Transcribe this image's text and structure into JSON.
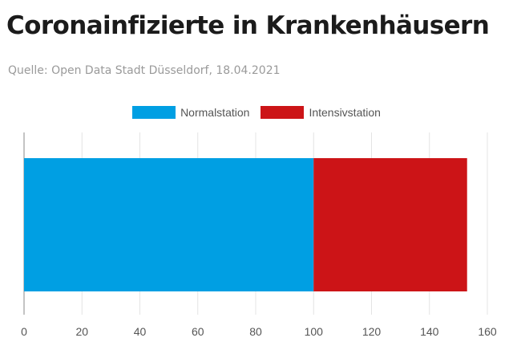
{
  "title": "Coronainfizierte in Krankenhäusern",
  "subtitle": "Quelle: Open Data Stadt Düsseldorf, 18.04.2021",
  "chart_data": {
    "type": "bar",
    "orientation": "horizontal",
    "stacked": true,
    "categories": [
      ""
    ],
    "series": [
      {
        "name": "Normalstation",
        "values": [
          100
        ],
        "color": "#009fe3"
      },
      {
        "name": "Intensivstation",
        "values": [
          53
        ],
        "color": "#cc1417"
      }
    ],
    "xlim": [
      0,
      160
    ],
    "xticks": [
      "0",
      "20",
      "40",
      "60",
      "80",
      "100",
      "120",
      "140",
      "160"
    ],
    "grid": true,
    "legend_position": "top-center"
  }
}
